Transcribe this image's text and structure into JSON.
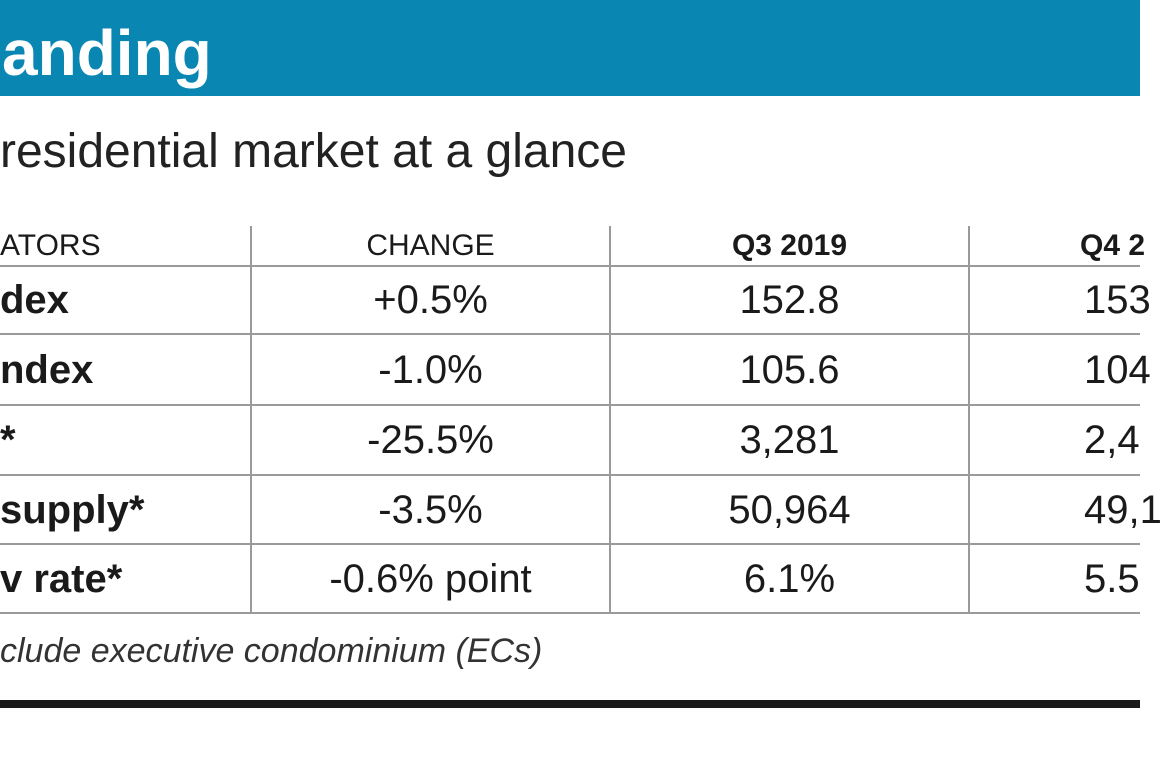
{
  "header": {
    "title": "anding",
    "subtitle": "residential market at a glance"
  },
  "chart_data": {
    "type": "table",
    "title": "residential market at a glance",
    "columns": [
      "ATORS",
      "CHANGE",
      "Q3 2019",
      "Q4 2"
    ],
    "rows": [
      {
        "indicator": "dex",
        "change": "+0.5%",
        "q3_2019": "152.8",
        "q4": "153"
      },
      {
        "indicator": "ndex",
        "change": "-1.0%",
        "q3_2019": "105.6",
        "q4": "104"
      },
      {
        "indicator": "*",
        "change": "-25.5%",
        "q3_2019": "3,281",
        "q4": "2,4"
      },
      {
        "indicator": "supply*",
        "change": "-3.5%",
        "q3_2019": "50,964",
        "q4": "49,1"
      },
      {
        "indicator": "v rate*",
        "change": "-0.6% point",
        "q3_2019": "6.1%",
        "q4": "5.5"
      }
    ],
    "note": "clude executive condominium (ECs)"
  },
  "colors": {
    "banner": "#0a86b3",
    "gridline": "#9a9a9a"
  }
}
